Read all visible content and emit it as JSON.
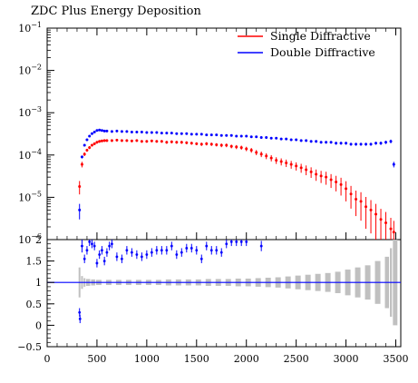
{
  "chart_data": [
    {
      "type": "scatter",
      "title": "ZDC Plus Energy Deposition",
      "xlabel": "",
      "ylabel": "",
      "yscale": "log",
      "xlim": [
        0,
        3550
      ],
      "ylim": [
        1e-06,
        0.1
      ],
      "yticks": [
        {
          "value": 0.1,
          "base": "10",
          "exp": "−1"
        },
        {
          "value": 0.01,
          "base": "10",
          "exp": "−2"
        },
        {
          "value": 0.001,
          "base": "10",
          "exp": "−3"
        },
        {
          "value": 0.0001,
          "base": "10",
          "exp": "−4"
        },
        {
          "value": 1e-05,
          "base": "10",
          "exp": "−5"
        },
        {
          "value": 1e-06,
          "base": "10",
          "exp": "−6"
        }
      ],
      "legend_position": "top-right",
      "series": [
        {
          "name": "Single Diffractive",
          "color": "#ff0000",
          "x": [
            325,
            350,
            375,
            400,
            425,
            450,
            475,
            500,
            525,
            550,
            575,
            600,
            650,
            700,
            750,
            800,
            850,
            900,
            950,
            1000,
            1050,
            1100,
            1150,
            1200,
            1250,
            1300,
            1350,
            1400,
            1450,
            1500,
            1550,
            1600,
            1650,
            1700,
            1750,
            1800,
            1850,
            1900,
            1950,
            2000,
            2050,
            2100,
            2150,
            2200,
            2250,
            2300,
            2350,
            2400,
            2450,
            2500,
            2550,
            2600,
            2650,
            2700,
            2750,
            2800,
            2850,
            2900,
            2950,
            3000,
            3050,
            3100,
            3150,
            3200,
            3250,
            3300,
            3350,
            3400,
            3450,
            3480
          ],
          "y": [
            1.8e-05,
            6e-05,
            0.000105,
            0.00013,
            0.00015,
            0.00017,
            0.000185,
            0.0002,
            0.00021,
            0.000215,
            0.00022,
            0.00022,
            0.00022,
            0.000225,
            0.00022,
            0.00022,
            0.000215,
            0.00022,
            0.00021,
            0.00021,
            0.000215,
            0.00021,
            0.00021,
            0.0002,
            0.000205,
            0.0002,
            0.0002,
            0.000195,
            0.00019,
            0.000185,
            0.00018,
            0.000185,
            0.00018,
            0.000175,
            0.00017,
            0.00017,
            0.00016,
            0.000155,
            0.00015,
            0.00014,
            0.00013,
            0.000115,
            0.000105,
            9.5e-05,
            8.5e-05,
            7.5e-05,
            7e-05,
            6.5e-05,
            6e-05,
            5.5e-05,
            5e-05,
            4.5e-05,
            4e-05,
            3.5e-05,
            3.2e-05,
            3e-05,
            2.6e-05,
            2.3e-05,
            2e-05,
            1.6e-05,
            1.2e-05,
            9e-06,
            8e-06,
            6e-06,
            5e-06,
            4e-06,
            3e-06,
            2.5e-06,
            1.8e-06,
            1.5e-06
          ],
          "yerr_rel": [
            0.35,
            0.15,
            0.1,
            0.08,
            0.08,
            0.07,
            0.07,
            0.07,
            0.07,
            0.07,
            0.07,
            0.07,
            0.07,
            0.07,
            0.07,
            0.07,
            0.07,
            0.07,
            0.07,
            0.07,
            0.07,
            0.07,
            0.07,
            0.08,
            0.08,
            0.08,
            0.08,
            0.08,
            0.08,
            0.08,
            0.09,
            0.09,
            0.09,
            0.09,
            0.1,
            0.1,
            0.1,
            0.11,
            0.11,
            0.12,
            0.13,
            0.14,
            0.15,
            0.16,
            0.17,
            0.18,
            0.19,
            0.2,
            0.21,
            0.22,
            0.24,
            0.26,
            0.28,
            0.3,
            0.32,
            0.34,
            0.36,
            0.4,
            0.45,
            0.5,
            0.55,
            0.6,
            0.65,
            0.7,
            0.72,
            0.75,
            0.78,
            0.8,
            0.82,
            0.85
          ]
        },
        {
          "name": "Double Diffractive",
          "color": "#0000ff",
          "x": [
            325,
            350,
            375,
            400,
            425,
            450,
            475,
            500,
            525,
            550,
            575,
            600,
            650,
            700,
            750,
            800,
            850,
            900,
            950,
            1000,
            1050,
            1100,
            1150,
            1200,
            1250,
            1300,
            1350,
            1400,
            1450,
            1500,
            1550,
            1600,
            1650,
            1700,
            1750,
            1800,
            1850,
            1900,
            1950,
            2000,
            2050,
            2100,
            2150,
            2200,
            2250,
            2300,
            2350,
            2400,
            2450,
            2500,
            2550,
            2600,
            2650,
            2700,
            2750,
            2800,
            2850,
            2900,
            2950,
            3000,
            3050,
            3100,
            3150,
            3200,
            3250,
            3300,
            3350,
            3400,
            3450,
            3480
          ],
          "y": [
            5e-06,
            9e-05,
            0.00017,
            0.00023,
            0.00028,
            0.00032,
            0.00035,
            0.00038,
            0.00039,
            0.00038,
            0.00037,
            0.00037,
            0.00036,
            0.00037,
            0.00036,
            0.00036,
            0.00035,
            0.00035,
            0.00035,
            0.00034,
            0.00034,
            0.00034,
            0.00033,
            0.00033,
            0.00033,
            0.00032,
            0.00032,
            0.00032,
            0.00031,
            0.00031,
            0.00031,
            0.0003,
            0.0003,
            0.0003,
            0.00029,
            0.00029,
            0.00029,
            0.00028,
            0.00028,
            0.00028,
            0.00027,
            0.00027,
            0.00026,
            0.00026,
            0.00025,
            0.00025,
            0.00024,
            0.00024,
            0.00023,
            0.00023,
            0.00022,
            0.00022,
            0.00021,
            0.00021,
            0.0002,
            0.0002,
            0.0002,
            0.00019,
            0.00019,
            0.00019,
            0.00018,
            0.00018,
            0.00018,
            0.00018,
            0.00018,
            0.00019,
            0.00019,
            0.0002,
            0.00021,
            6e-05
          ],
          "yerr_rel": [
            0.4,
            0.08,
            0.06,
            0.05,
            0.05,
            0.05,
            0.05,
            0.05,
            0.05,
            0.05,
            0.05,
            0.05,
            0.05,
            0.05,
            0.05,
            0.05,
            0.05,
            0.05,
            0.05,
            0.05,
            0.05,
            0.05,
            0.05,
            0.05,
            0.05,
            0.05,
            0.05,
            0.05,
            0.05,
            0.05,
            0.05,
            0.05,
            0.05,
            0.05,
            0.05,
            0.05,
            0.05,
            0.05,
            0.05,
            0.05,
            0.06,
            0.06,
            0.06,
            0.06,
            0.06,
            0.06,
            0.06,
            0.06,
            0.06,
            0.06,
            0.07,
            0.07,
            0.07,
            0.07,
            0.07,
            0.07,
            0.07,
            0.08,
            0.08,
            0.08,
            0.08,
            0.08,
            0.08,
            0.08,
            0.08,
            0.08,
            0.09,
            0.09,
            0.1,
            0.15
          ]
        }
      ]
    },
    {
      "type": "scatter",
      "title": "",
      "xlabel": "",
      "ylabel": "",
      "xlim": [
        0,
        3550
      ],
      "ylim": [
        -0.5,
        2
      ],
      "yticks": [
        "−0.5",
        "0",
        "0.5",
        "1",
        "1.5",
        "2"
      ],
      "xticks": [
        "0",
        "500",
        "1000",
        "1500",
        "2000",
        "2500",
        "3000",
        "3500"
      ],
      "reference_line": 1,
      "band": {
        "color": "#c0c0c0",
        "x": [
          325,
          350,
          375,
          400,
          450,
          500,
          600,
          700,
          800,
          900,
          1000,
          1100,
          1200,
          1300,
          1400,
          1500,
          1600,
          1700,
          1800,
          1900,
          2000,
          2100,
          2200,
          2300,
          2400,
          2500,
          2600,
          2700,
          2800,
          2900,
          3000,
          3100,
          3200,
          3300,
          3400,
          3450,
          3480
        ],
        "half_width": [
          0.35,
          0.15,
          0.1,
          0.08,
          0.07,
          0.06,
          0.06,
          0.06,
          0.06,
          0.06,
          0.06,
          0.06,
          0.07,
          0.07,
          0.07,
          0.07,
          0.08,
          0.08,
          0.08,
          0.09,
          0.09,
          0.1,
          0.11,
          0.12,
          0.14,
          0.16,
          0.18,
          0.2,
          0.22,
          0.25,
          0.3,
          0.35,
          0.4,
          0.5,
          0.6,
          0.8,
          1.0
        ]
      },
      "series": [
        {
          "name": "Double Diffractive",
          "color": "#0000ff",
          "x": [
            325,
            330,
            350,
            375,
            400,
            425,
            450,
            475,
            500,
            525,
            550,
            575,
            600,
            625,
            650,
            700,
            750,
            800,
            850,
            900,
            950,
            1000,
            1050,
            1100,
            1150,
            1200,
            1250,
            1300,
            1350,
            1400,
            1450,
            1500,
            1550,
            1600,
            1650,
            1700,
            1750,
            1800,
            1850,
            1900,
            1950,
            2000,
            2150
          ],
          "y": [
            0.3,
            0.15,
            1.85,
            1.55,
            1.75,
            1.95,
            1.9,
            1.85,
            1.45,
            1.65,
            1.75,
            1.5,
            1.7,
            1.85,
            1.9,
            1.6,
            1.55,
            1.75,
            1.7,
            1.65,
            1.6,
            1.65,
            1.7,
            1.75,
            1.75,
            1.75,
            1.85,
            1.65,
            1.7,
            1.8,
            1.8,
            1.75,
            1.55,
            1.85,
            1.75,
            1.75,
            1.7,
            1.9,
            1.95,
            1.95,
            1.95,
            1.95,
            1.85
          ],
          "yerr": [
            0.1,
            0.1,
            0.15,
            0.1,
            0.1,
            0.1,
            0.1,
            0.1,
            0.1,
            0.1,
            0.1,
            0.1,
            0.1,
            0.1,
            0.1,
            0.1,
            0.1,
            0.1,
            0.1,
            0.1,
            0.1,
            0.1,
            0.1,
            0.1,
            0.1,
            0.1,
            0.1,
            0.1,
            0.1,
            0.1,
            0.1,
            0.1,
            0.1,
            0.1,
            0.1,
            0.1,
            0.1,
            0.1,
            0.1,
            0.1,
            0.1,
            0.1,
            0.12
          ]
        }
      ]
    }
  ]
}
